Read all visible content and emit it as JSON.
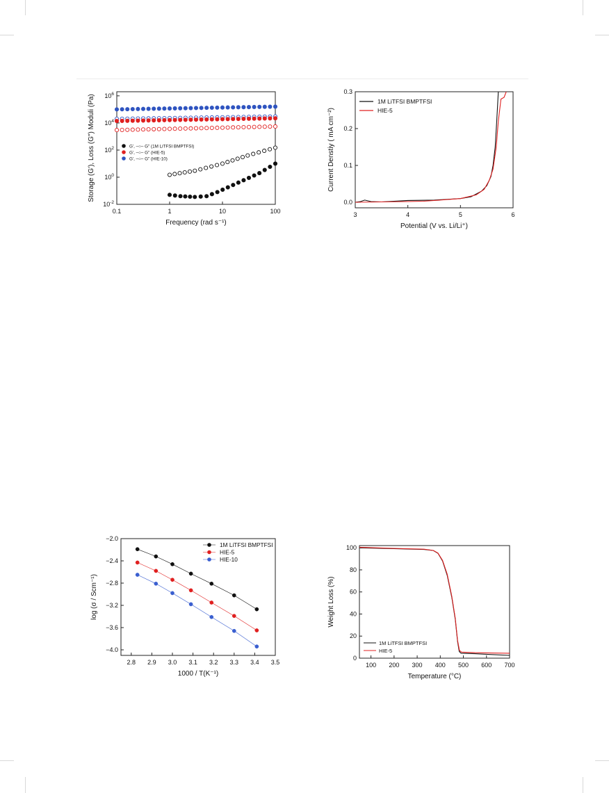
{
  "charts": [
    {
      "id": "rheology",
      "chart_data": {
        "type": "scatter",
        "xlabel": "Frequency (rad s⁻¹)",
        "ylabel": "Storage (G'), Loss (G\") Moduli (Pa)",
        "xscale": "log",
        "yscale": "log",
        "xlim": [
          0.1,
          100
        ],
        "ylim": [
          0.01,
          2000000
        ],
        "xticks": [
          0.1,
          1,
          10,
          100
        ],
        "xticklabels": [
          "0.1",
          "1",
          "10",
          "100"
        ],
        "yticks": [
          0.01,
          1,
          100,
          10000,
          1000000
        ],
        "ytick_base": "10",
        "ytick_exponents": [
          "-2",
          "0",
          "2",
          "4",
          "6"
        ],
        "legend_position": "middle-left",
        "legend": [
          {
            "label": "G', –○– G\" (1M LiTFSI BMPTFSI)",
            "color": "#111111"
          },
          {
            "label": "G', –○– G\" (HIE-5)",
            "color": "#e02020"
          },
          {
            "label": "G', –○– G\" (HIE-10)",
            "color": "#2f54c0"
          }
        ],
        "series": [
          {
            "color": "#2f54c0",
            "filled": true,
            "points": [
              [
                0.1,
                100000
              ],
              [
                100,
                160000
              ]
            ]
          },
          {
            "color": "#2f54c0",
            "filled": false,
            "points": [
              [
                0.1,
                20000
              ],
              [
                100,
                30000
              ]
            ]
          },
          {
            "color": "#e02020",
            "filled": true,
            "points": [
              [
                0.1,
                14000
              ],
              [
                100,
                22000
              ]
            ]
          },
          {
            "color": "#e02020",
            "filled": false,
            "points": [
              [
                0.1,
                3000
              ],
              [
                100,
                5500
              ]
            ]
          },
          {
            "color": "#111111",
            "filled": false,
            "points": [
              [
                1,
                1.5
              ],
              [
                3,
                3
              ],
              [
                10,
                10
              ],
              [
                30,
                40
              ],
              [
                100,
                150
              ]
            ]
          },
          {
            "color": "#111111",
            "filled": true,
            "points": [
              [
                1,
                0.05
              ],
              [
                1.6,
                0.04
              ],
              [
                3,
                0.035
              ],
              [
                5,
                0.04
              ],
              [
                8,
                0.08
              ],
              [
                20,
                0.4
              ],
              [
                50,
                2
              ],
              [
                100,
                10
              ]
            ]
          }
        ]
      }
    },
    {
      "id": "lsv",
      "chart_data": {
        "type": "line",
        "xlabel": "Potential (V vs. Li/Li⁺)",
        "ylabel": "Current Denstiy ( mA cm⁻²)",
        "xlim": [
          3,
          6
        ],
        "ylim": [
          -0.015,
          0.3
        ],
        "xticks": [
          3,
          4,
          5,
          6
        ],
        "xticklabels": [
          "3",
          "4",
          "5",
          "6"
        ],
        "yticks": [
          0,
          0.1,
          0.2,
          0.3
        ],
        "yticklabels": [
          "0.0",
          "0.1",
          "0.2",
          "0.3"
        ],
        "legend_position": "top-left",
        "series": [
          {
            "name": "1M LiTFSI BMPTFSI",
            "color": "#111111",
            "points": [
              [
                3.0,
                0.0
              ],
              [
                3.1,
                0.002
              ],
              [
                3.18,
                0.006
              ],
              [
                3.3,
                0.002
              ],
              [
                3.5,
                0.001
              ],
              [
                4.0,
                0.005
              ],
              [
                4.5,
                0.006
              ],
              [
                5.0,
                0.01
              ],
              [
                5.2,
                0.015
              ],
              [
                5.4,
                0.03
              ],
              [
                5.5,
                0.045
              ],
              [
                5.58,
                0.07
              ],
              [
                5.62,
                0.1
              ],
              [
                5.66,
                0.15
              ],
              [
                5.69,
                0.22
              ],
              [
                5.72,
                0.3
              ]
            ]
          },
          {
            "name": "HIE-5",
            "color": "#e02020",
            "points": [
              [
                3.0,
                0.0
              ],
              [
                3.5,
                0.001
              ],
              [
                4.0,
                0.002
              ],
              [
                4.3,
                0.003
              ],
              [
                4.6,
                0.006
              ],
              [
                5.0,
                0.01
              ],
              [
                5.3,
                0.02
              ],
              [
                5.45,
                0.035
              ],
              [
                5.55,
                0.06
              ],
              [
                5.62,
                0.09
              ],
              [
                5.68,
                0.15
              ],
              [
                5.72,
                0.22
              ],
              [
                5.77,
                0.28
              ],
              [
                5.83,
                0.285
              ],
              [
                5.87,
                0.3
              ]
            ]
          }
        ]
      }
    },
    {
      "id": "arrhenius",
      "chart_data": {
        "type": "line",
        "xlabel": "1000 / T(K⁻¹)",
        "ylabel": "log (σ / Scm⁻¹)",
        "xlim": [
          2.75,
          3.5
        ],
        "ylim": [
          -4.1,
          -2.0
        ],
        "xticks": [
          2.8,
          2.9,
          3.0,
          3.1,
          3.2,
          3.3,
          3.4,
          3.5
        ],
        "xticklabels": [
          "2.8",
          "2.9",
          "3.0",
          "3.1",
          "3.2",
          "3.3",
          "3.4",
          "3.5"
        ],
        "yticks": [
          -2.0,
          -2.4,
          -2.8,
          -3.2,
          -3.6,
          -4.0
        ],
        "yticklabels": [
          "−2.0",
          "−2.4",
          "−2.8",
          "−3.2",
          "−3.6",
          "−4.0"
        ],
        "legend_position": "top-right",
        "x": [
          2.83,
          2.92,
          3.0,
          3.09,
          3.19,
          3.3,
          3.41
        ],
        "series": [
          {
            "name": "1M LiTFSI BMPTFSI",
            "color": "#111111",
            "values": [
              -2.19,
              -2.32,
              -2.46,
              -2.63,
              -2.81,
              -3.02,
              -3.27
            ]
          },
          {
            "name": "HIE-5",
            "color": "#e02020",
            "values": [
              -2.43,
              -2.58,
              -2.74,
              -2.93,
              -3.15,
              -3.39,
              -3.65
            ]
          },
          {
            "name": "HIE-10",
            "color": "#3a5fd0",
            "values": [
              -2.65,
              -2.81,
              -2.98,
              -3.18,
              -3.41,
              -3.66,
              -3.94
            ]
          }
        ]
      }
    },
    {
      "id": "tga",
      "chart_data": {
        "type": "line",
        "xlabel": "Temperature (°C)",
        "ylabel": "Weight Loss (%)",
        "xlim": [
          50,
          700
        ],
        "ylim": [
          0,
          102
        ],
        "xticks": [
          100,
          200,
          300,
          400,
          500,
          600,
          700
        ],
        "xticklabels": [
          "100",
          "200",
          "300",
          "400",
          "500",
          "600",
          "700"
        ],
        "yticks": [
          0,
          20,
          40,
          60,
          80,
          100
        ],
        "yticklabels": [
          "0",
          "20",
          "40",
          "60",
          "80",
          "100"
        ],
        "legend_position": "bottom-left",
        "series": [
          {
            "name": "1M LiTFSI BMPTFSI",
            "color": "#111111",
            "points": [
              [
                50,
                100
              ],
              [
                200,
                99.2
              ],
              [
                330,
                98.5
              ],
              [
                370,
                97.5
              ],
              [
                390,
                95
              ],
              [
                410,
                88
              ],
              [
                430,
                75
              ],
              [
                450,
                55
              ],
              [
                465,
                35
              ],
              [
                475,
                15
              ],
              [
                482,
                6
              ],
              [
                490,
                4.5
              ],
              [
                550,
                4
              ],
              [
                600,
                3.5
              ],
              [
                700,
                2.5
              ]
            ]
          },
          {
            "name": "HIE-5",
            "color": "#e02020",
            "points": [
              [
                50,
                100.5
              ],
              [
                200,
                99.4
              ],
              [
                330,
                98.7
              ],
              [
                370,
                97.6
              ],
              [
                390,
                95.2
              ],
              [
                410,
                88.5
              ],
              [
                430,
                76
              ],
              [
                450,
                56
              ],
              [
                465,
                36
              ],
              [
                475,
                16
              ],
              [
                483,
                7
              ],
              [
                492,
                5.5
              ],
              [
                550,
                5
              ],
              [
                600,
                4.8
              ],
              [
                700,
                4.5
              ]
            ]
          }
        ]
      }
    }
  ]
}
